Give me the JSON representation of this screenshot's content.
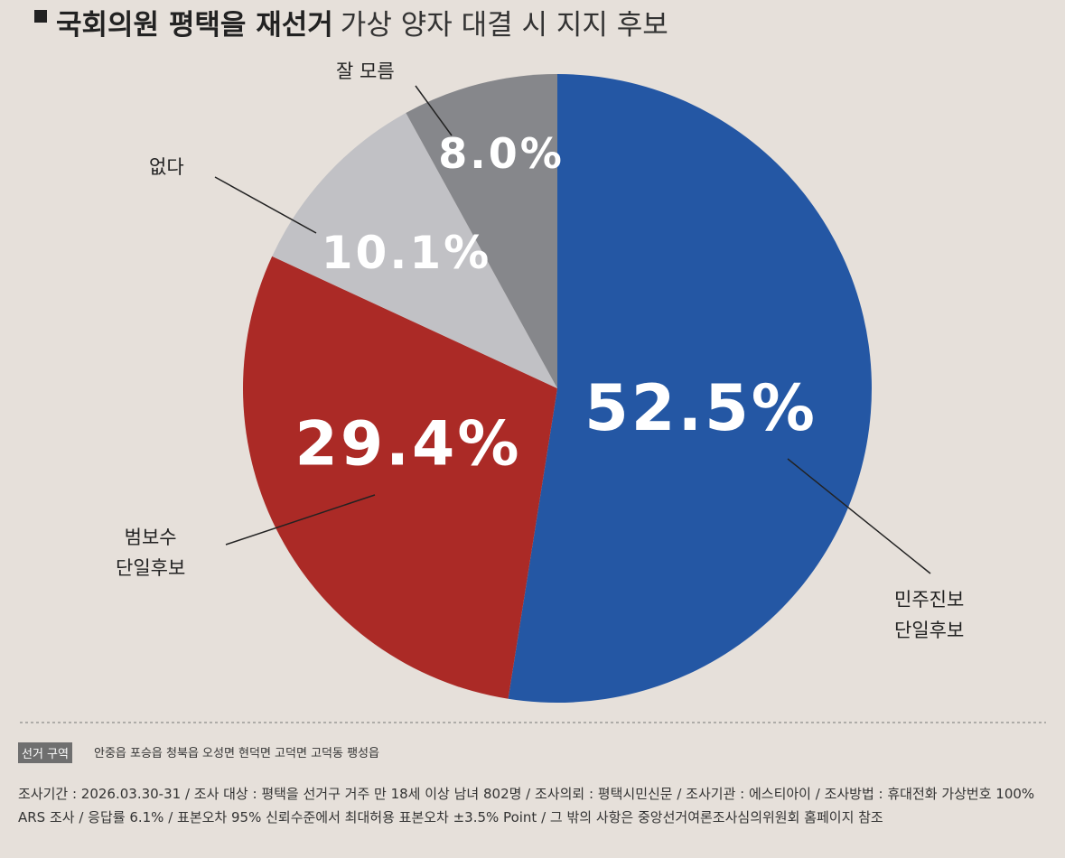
{
  "chart_data": {
    "type": "pie",
    "title": "국회의원 평택을 재선거",
    "title_rest": "가상 양자 대결 시 지지 후보",
    "categories": [
      "민주진보\n단일후보",
      "범보수\n단일후보",
      "없다",
      "잘 모름"
    ],
    "values": [
      52.5,
      29.4,
      10.1,
      8.0
    ],
    "value_labels": [
      "52.5%",
      "29.4%",
      "10.1%",
      "8.0%"
    ],
    "colors": [
      "#2457a4",
      "#ab2a26",
      "#c1c1c5",
      "#86878b"
    ]
  },
  "footer": {
    "region_tag": "선거 구역",
    "region": "안중읍 포승읍 청북읍 오성면 현덕면 고덕면 고덕동 팽성읍",
    "notes": "조사기간 : 2026.03.30-31 / 조사 대상 : 평택을 선거구 거주 만 18세 이상 남녀 802명 / 조사의뢰 : 평택시민신문 / 조사기관 : 에스티아이 / 조사방법 : 휴대전화 가상번호 100% ARS 조사 / 응답률 6.1% / 표본오차  95% 신뢰수준에서 최대허용 표본오차 ±3.5% Point / 그 밖의 사항은 중앙선거여론조사심의위원회 홈페이지 참조"
  }
}
